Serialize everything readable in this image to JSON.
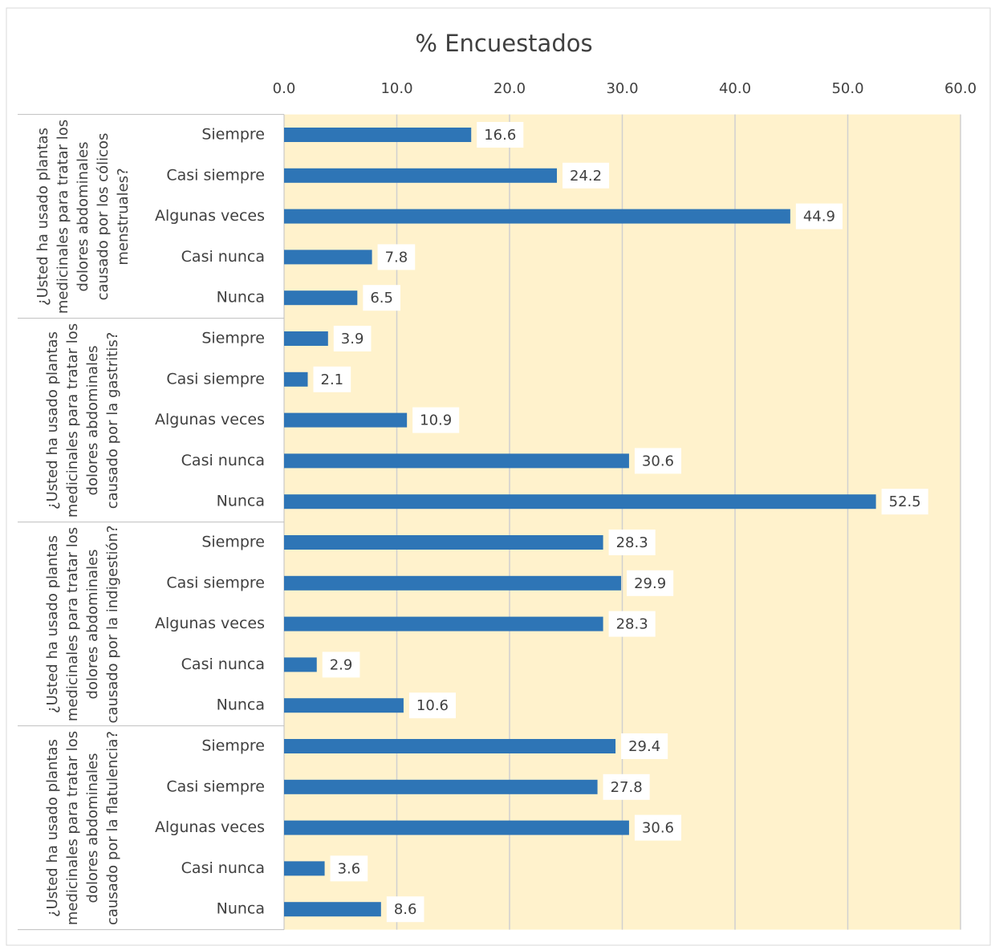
{
  "chart_data": {
    "type": "bar",
    "title": "% Encuestados",
    "xlim": [
      0,
      60
    ],
    "xticks": [
      {
        "value": 0,
        "label": "0.0"
      },
      {
        "value": 10,
        "label": "10.0"
      },
      {
        "value": 20,
        "label": "20.0"
      },
      {
        "value": 30,
        "label": "30.0"
      },
      {
        "value": 40,
        "label": "40.0"
      },
      {
        "value": 50,
        "label": "50.0"
      },
      {
        "value": 60,
        "label": "60.0"
      }
    ],
    "grid": true,
    "color": "#2e75b6",
    "groups": [
      {
        "label": "¿Usted ha usado plantas medicinales para tratar los dolores abdominales causado por los cólicos menstruales?",
        "categories": [
          "Siempre",
          "Casi siempre",
          "Algunas veces",
          "Casi nunca",
          "Nunca"
        ],
        "values": [
          16.6,
          24.2,
          44.9,
          7.8,
          6.5
        ]
      },
      {
        "label": "¿Usted ha usado plantas medicinales para tratar los dolores abdominales causado por la gastritis?",
        "categories": [
          "Siempre",
          "Casi siempre",
          "Algunas veces",
          "Casi nunca",
          "Nunca"
        ],
        "values": [
          3.9,
          2.1,
          10.9,
          30.6,
          52.5
        ]
      },
      {
        "label": "¿Usted ha usado plantas medicinales para tratar los dolores abdominales causado por la indigestión?",
        "categories": [
          "Siempre",
          "Casi siempre",
          "Algunas veces",
          "Casi nunca",
          "Nunca"
        ],
        "values": [
          28.3,
          29.9,
          28.3,
          2.9,
          10.6
        ]
      },
      {
        "label": "¿Usted ha usado plantas medicinales para tratar los dolores abdominales causado por la flatulencia?",
        "categories": [
          "Siempre",
          "Casi siempre",
          "Algunas veces",
          "Casi nunca",
          "Nunca"
        ],
        "values": [
          29.4,
          27.8,
          30.6,
          3.6,
          8.6
        ]
      }
    ]
  }
}
